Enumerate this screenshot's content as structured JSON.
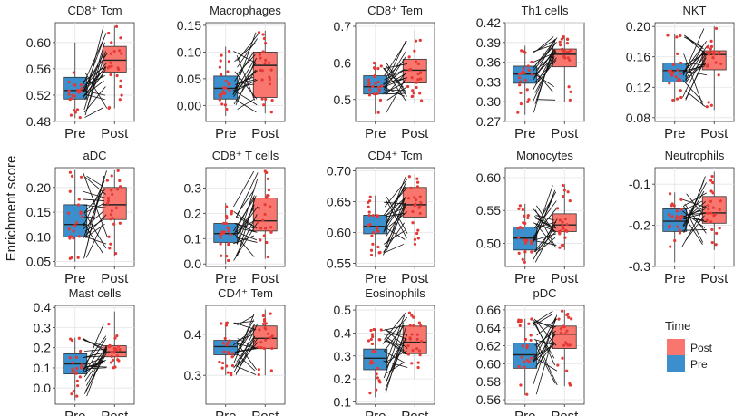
{
  "chart_data": {
    "type": "boxplot-paired",
    "ylabel": "Enrichment score",
    "x_categories": [
      "Pre",
      "Post"
    ],
    "legend": {
      "title": "Time",
      "entries": [
        {
          "label": "Post",
          "color": "#F8766D"
        },
        {
          "label": "Pre",
          "color": "#3B8FCC"
        }
      ]
    },
    "panels": [
      {
        "title": "CD8⁺ Tcm",
        "ylim": [
          0.48,
          0.63
        ],
        "ticks": [
          "0.48",
          "0.52",
          "0.56",
          "0.60"
        ],
        "pre": {
          "q1": 0.514,
          "median": 0.527,
          "q3": 0.547,
          "wlo": 0.485,
          "whi": 0.6
        },
        "post": {
          "q1": 0.555,
          "median": 0.573,
          "q3": 0.594,
          "wlo": 0.5,
          "whi": 0.625
        }
      },
      {
        "title": "Macrophages",
        "ylim": [
          -0.03,
          0.155
        ],
        "ticks": [
          "0.00",
          "0.05",
          "0.10",
          "0.15"
        ],
        "pre": {
          "q1": 0.012,
          "median": 0.032,
          "q3": 0.055,
          "wlo": -0.02,
          "whi": 0.11
        },
        "post": {
          "q1": 0.015,
          "median": 0.075,
          "q3": 0.1,
          "wlo": -0.015,
          "whi": 0.14
        }
      },
      {
        "title": "CD8⁺ Tem",
        "ylim": [
          0.44,
          0.71
        ],
        "ticks": [
          "0.5",
          "0.6",
          "0.7"
        ],
        "pre": {
          "q1": 0.515,
          "median": 0.535,
          "q3": 0.565,
          "wlo": 0.46,
          "whi": 0.6
        },
        "post": {
          "q1": 0.545,
          "median": 0.58,
          "q3": 0.61,
          "wlo": 0.49,
          "whi": 0.69
        }
      },
      {
        "title": "Th1 cells",
        "ylim": [
          0.27,
          0.42
        ],
        "ticks": [
          "0.27",
          "0.30",
          "0.33",
          "0.36",
          "0.39",
          "0.42"
        ],
        "pre": {
          "q1": 0.328,
          "median": 0.342,
          "q3": 0.354,
          "wlo": 0.28,
          "whi": 0.385
        },
        "post": {
          "q1": 0.353,
          "median": 0.372,
          "q3": 0.38,
          "wlo": 0.3,
          "whi": 0.4
        }
      },
      {
        "title": "NKT",
        "ylim": [
          0.075,
          0.205
        ],
        "ticks": [
          "0.08",
          "0.12",
          "0.16",
          "0.20"
        ],
        "pre": {
          "q1": 0.127,
          "median": 0.142,
          "q3": 0.152,
          "wlo": 0.1,
          "whi": 0.19
        },
        "post": {
          "q1": 0.143,
          "median": 0.163,
          "q3": 0.168,
          "wlo": 0.09,
          "whi": 0.2
        }
      },
      {
        "title": "aDC",
        "ylim": [
          0.04,
          0.24
        ],
        "ticks": [
          "0.05",
          "0.10",
          "0.15",
          "0.20"
        ],
        "pre": {
          "q1": 0.1,
          "median": 0.125,
          "q3": 0.165,
          "wlo": 0.05,
          "whi": 0.235
        },
        "post": {
          "q1": 0.135,
          "median": 0.165,
          "q3": 0.2,
          "wlo": 0.06,
          "whi": 0.235
        }
      },
      {
        "title": "CD8⁺ T cells",
        "ylim": [
          -0.01,
          0.38
        ],
        "ticks": [
          "0.0",
          "0.1",
          "0.2",
          "0.3"
        ],
        "pre": {
          "q1": 0.085,
          "median": 0.12,
          "q3": 0.16,
          "wlo": 0.0,
          "whi": 0.24
        },
        "post": {
          "q1": 0.13,
          "median": 0.17,
          "q3": 0.26,
          "wlo": 0.02,
          "whi": 0.37
        }
      },
      {
        "title": "CD4⁺ Tcm",
        "ylim": [
          0.545,
          0.705
        ],
        "ticks": [
          "0.55",
          "0.60",
          "0.65",
          "0.70"
        ],
        "pre": {
          "q1": 0.598,
          "median": 0.61,
          "q3": 0.628,
          "wlo": 0.56,
          "whi": 0.66
        },
        "post": {
          "q1": 0.625,
          "median": 0.645,
          "q3": 0.673,
          "wlo": 0.58,
          "whi": 0.695
        }
      },
      {
        "title": "Monocytes",
        "ylim": [
          0.465,
          0.615
        ],
        "ticks": [
          "0.50",
          "0.55",
          "0.60"
        ],
        "pre": {
          "q1": 0.49,
          "median": 0.508,
          "q3": 0.525,
          "wlo": 0.47,
          "whi": 0.56
        },
        "post": {
          "q1": 0.518,
          "median": 0.528,
          "q3": 0.545,
          "wlo": 0.49,
          "whi": 0.59
        }
      },
      {
        "title": "Neutrophils",
        "ylim": [
          -0.3,
          -0.06
        ],
        "ticks": [
          "-0.3",
          "-0.2",
          "-0.1"
        ],
        "pre": {
          "q1": -0.215,
          "median": -0.19,
          "q3": -0.16,
          "wlo": -0.29,
          "whi": -0.12
        },
        "post": {
          "q1": -0.195,
          "median": -0.17,
          "q3": -0.13,
          "wlo": -0.26,
          "whi": -0.07
        }
      },
      {
        "title": "Mast cells",
        "ylim": [
          -0.08,
          0.41
        ],
        "ticks": [
          "0.0",
          "0.1",
          "0.2",
          "0.3",
          "0.4"
        ],
        "pre": {
          "q1": 0.07,
          "median": 0.12,
          "q3": 0.17,
          "wlo": -0.06,
          "whi": 0.25
        },
        "post": {
          "q1": 0.155,
          "median": 0.18,
          "q3": 0.21,
          "wlo": 0.1,
          "whi": 0.38
        }
      },
      {
        "title": "CD4⁺ Tem",
        "ylim": [
          0.23,
          0.47
        ],
        "ticks": [
          "0.3",
          "0.4"
        ],
        "pre": {
          "q1": 0.35,
          "median": 0.37,
          "q3": 0.385,
          "wlo": 0.3,
          "whi": 0.43
        },
        "post": {
          "q1": 0.365,
          "median": 0.39,
          "q3": 0.42,
          "wlo": 0.3,
          "whi": 0.46
        }
      },
      {
        "title": "Eosinophils",
        "ylim": [
          0.09,
          0.52
        ],
        "ticks": [
          "0.1",
          "0.2",
          "0.3",
          "0.4",
          "0.5"
        ],
        "pre": {
          "q1": 0.24,
          "median": 0.29,
          "q3": 0.33,
          "wlo": 0.12,
          "whi": 0.42
        },
        "post": {
          "q1": 0.31,
          "median": 0.36,
          "q3": 0.43,
          "wlo": 0.2,
          "whi": 0.5
        }
      },
      {
        "title": "pDC",
        "ylim": [
          0.555,
          0.665
        ],
        "ticks": [
          "0.56",
          "0.58",
          "0.60",
          "0.62",
          "0.64",
          "0.66"
        ],
        "pre": {
          "q1": 0.595,
          "median": 0.61,
          "q3": 0.623,
          "wlo": 0.565,
          "whi": 0.65
        },
        "post": {
          "q1": 0.617,
          "median": 0.633,
          "q3": 0.642,
          "wlo": 0.575,
          "whi": 0.66
        }
      }
    ]
  }
}
